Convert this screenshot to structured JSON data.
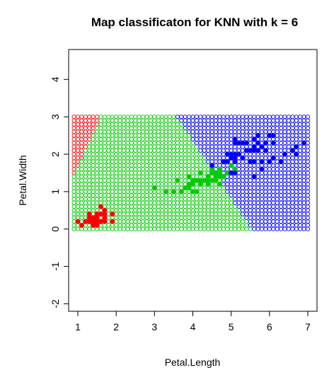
{
  "chart_data": {
    "type": "scatter",
    "title": "Map classificaton for KNN with k =  6",
    "xlabel": "Petal.Length",
    "ylabel": "Petal.Width",
    "xlim": [
      0.76,
      7.24
    ],
    "ylim": [
      -2.2,
      4.8
    ],
    "x_ticks": [
      1,
      2,
      3,
      4,
      5,
      6,
      7
    ],
    "y_ticks": [
      -2,
      -1,
      0,
      1,
      2,
      3,
      4
    ],
    "grid": {
      "x_range": [
        0.9,
        7.0
      ],
      "y_range": [
        0,
        3.0
      ],
      "x_step": 0.1,
      "y_step": 0.1,
      "note": "classification map of open circles over the grid"
    },
    "class_colors": {
      "setosa": "#ff0000",
      "versicolor": "#00cd00",
      "virginica": "#0000ff"
    },
    "series": [
      {
        "color": "#ff0000",
        "points": [
          [
            1.4,
            0.2
          ],
          [
            1.4,
            0.2
          ],
          [
            1.3,
            0.2
          ],
          [
            1.5,
            0.2
          ],
          [
            1.4,
            0.2
          ],
          [
            1.7,
            0.4
          ],
          [
            1.4,
            0.3
          ],
          [
            1.5,
            0.2
          ],
          [
            1.4,
            0.2
          ],
          [
            1.5,
            0.1
          ],
          [
            1.5,
            0.2
          ],
          [
            1.6,
            0.2
          ],
          [
            1.4,
            0.1
          ],
          [
            1.1,
            0.1
          ],
          [
            1.2,
            0.2
          ],
          [
            1.5,
            0.4
          ],
          [
            1.3,
            0.4
          ],
          [
            1.4,
            0.3
          ],
          [
            1.7,
            0.3
          ],
          [
            1.5,
            0.3
          ],
          [
            1.7,
            0.2
          ],
          [
            1.5,
            0.4
          ],
          [
            1.0,
            0.2
          ],
          [
            1.7,
            0.5
          ],
          [
            1.9,
            0.2
          ],
          [
            1.6,
            0.2
          ],
          [
            1.6,
            0.4
          ],
          [
            1.5,
            0.2
          ],
          [
            1.4,
            0.2
          ],
          [
            1.6,
            0.2
          ],
          [
            1.6,
            0.2
          ],
          [
            1.5,
            0.4
          ],
          [
            1.5,
            0.1
          ],
          [
            1.4,
            0.2
          ],
          [
            1.5,
            0.2
          ],
          [
            1.2,
            0.2
          ],
          [
            1.3,
            0.2
          ],
          [
            1.4,
            0.1
          ],
          [
            1.3,
            0.2
          ],
          [
            1.5,
            0.2
          ],
          [
            1.3,
            0.3
          ],
          [
            1.3,
            0.3
          ],
          [
            1.3,
            0.2
          ],
          [
            1.6,
            0.6
          ],
          [
            1.9,
            0.4
          ],
          [
            1.4,
            0.3
          ],
          [
            1.6,
            0.2
          ],
          [
            1.4,
            0.2
          ],
          [
            1.5,
            0.2
          ],
          [
            1.4,
            0.2
          ]
        ]
      },
      {
        "color": "#00cd00",
        "points": [
          [
            4.7,
            1.4
          ],
          [
            4.5,
            1.5
          ],
          [
            4.9,
            1.5
          ],
          [
            4.0,
            1.3
          ],
          [
            4.6,
            1.5
          ],
          [
            4.5,
            1.3
          ],
          [
            4.7,
            1.6
          ],
          [
            3.3,
            1.0
          ],
          [
            4.6,
            1.3
          ],
          [
            3.9,
            1.4
          ],
          [
            3.5,
            1.0
          ],
          [
            4.2,
            1.5
          ],
          [
            4.0,
            1.0
          ],
          [
            4.7,
            1.4
          ],
          [
            3.6,
            1.3
          ],
          [
            4.4,
            1.4
          ],
          [
            4.5,
            1.5
          ],
          [
            4.1,
            1.0
          ],
          [
            4.5,
            1.5
          ],
          [
            3.9,
            1.1
          ],
          [
            4.8,
            1.8
          ],
          [
            4.0,
            1.3
          ],
          [
            4.9,
            1.5
          ],
          [
            4.7,
            1.2
          ],
          [
            4.3,
            1.3
          ],
          [
            4.4,
            1.4
          ],
          [
            4.8,
            1.4
          ],
          [
            5.0,
            1.7
          ],
          [
            4.5,
            1.5
          ],
          [
            3.5,
            1.0
          ],
          [
            3.8,
            1.1
          ],
          [
            3.7,
            1.0
          ],
          [
            3.9,
            1.2
          ],
          [
            5.1,
            1.6
          ],
          [
            4.5,
            1.5
          ],
          [
            4.5,
            1.6
          ],
          [
            4.7,
            1.5
          ],
          [
            4.4,
            1.3
          ],
          [
            4.1,
            1.3
          ],
          [
            4.0,
            1.3
          ],
          [
            4.4,
            1.2
          ],
          [
            4.6,
            1.4
          ],
          [
            4.0,
            1.2
          ],
          [
            3.3,
            1.0
          ],
          [
            4.2,
            1.3
          ],
          [
            4.2,
            1.2
          ],
          [
            4.2,
            1.3
          ],
          [
            4.3,
            1.3
          ],
          [
            3.0,
            1.1
          ],
          [
            4.1,
            1.3
          ]
        ]
      },
      {
        "color": "#0000ff",
        "points": [
          [
            6.0,
            2.5
          ],
          [
            5.1,
            1.9
          ],
          [
            5.9,
            2.1
          ],
          [
            5.6,
            1.8
          ],
          [
            5.8,
            2.2
          ],
          [
            6.6,
            2.1
          ],
          [
            4.5,
            1.7
          ],
          [
            6.3,
            1.8
          ],
          [
            5.8,
            1.8
          ],
          [
            6.1,
            2.5
          ],
          [
            5.1,
            2.0
          ],
          [
            5.3,
            1.9
          ],
          [
            5.5,
            2.1
          ],
          [
            5.0,
            2.0
          ],
          [
            5.1,
            2.4
          ],
          [
            5.3,
            2.3
          ],
          [
            5.5,
            1.8
          ],
          [
            6.7,
            2.2
          ],
          [
            6.9,
            2.3
          ],
          [
            5.0,
            1.5
          ],
          [
            5.7,
            2.3
          ],
          [
            4.9,
            2.0
          ],
          [
            6.7,
            2.0
          ],
          [
            4.9,
            1.8
          ],
          [
            5.7,
            2.1
          ],
          [
            6.0,
            1.8
          ],
          [
            4.8,
            1.8
          ],
          [
            4.9,
            1.8
          ],
          [
            5.6,
            2.1
          ],
          [
            5.8,
            1.6
          ],
          [
            6.1,
            1.9
          ],
          [
            6.4,
            2.0
          ],
          [
            5.6,
            2.2
          ],
          [
            5.1,
            1.5
          ],
          [
            5.6,
            1.4
          ],
          [
            6.1,
            2.3
          ],
          [
            5.6,
            2.4
          ],
          [
            5.5,
            1.8
          ],
          [
            4.8,
            1.8
          ],
          [
            5.4,
            2.1
          ],
          [
            5.6,
            2.4
          ],
          [
            5.1,
            2.3
          ],
          [
            5.1,
            1.9
          ],
          [
            5.9,
            2.3
          ],
          [
            5.7,
            2.5
          ],
          [
            5.2,
            2.3
          ],
          [
            5.0,
            1.9
          ],
          [
            5.2,
            2.0
          ],
          [
            5.4,
            2.3
          ],
          [
            5.1,
            1.8
          ]
        ]
      }
    ]
  }
}
